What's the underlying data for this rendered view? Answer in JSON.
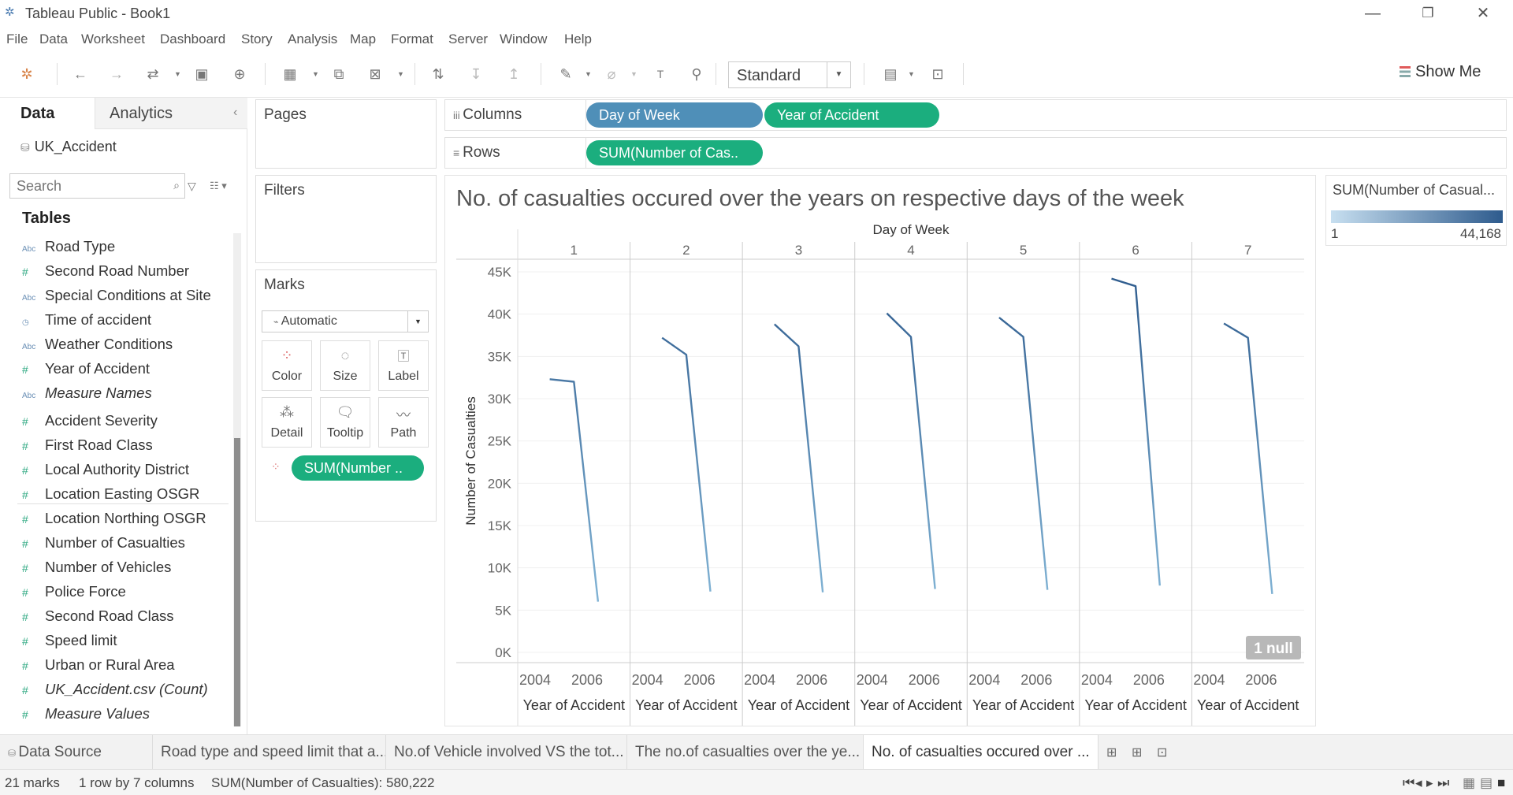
{
  "window": {
    "title": "Tableau Public - Book1",
    "minimize": "—",
    "restore": "❐",
    "close": "✕"
  },
  "menu": [
    "File",
    "Data",
    "Worksheet",
    "Dashboard",
    "Story",
    "Analysis",
    "Map",
    "Format",
    "Server",
    "Window",
    "Help"
  ],
  "toolbar": {
    "fit_value": "Standard",
    "show_me": "Show Me"
  },
  "data_pane": {
    "tab_data": "Data",
    "tab_analytics": "Analytics",
    "datasource": "UK_Accident",
    "search_placeholder": "Search",
    "tables_heading": "Tables",
    "dimensions": [
      {
        "type": "Abc",
        "name": "Road Type"
      },
      {
        "type": "#",
        "name": "Second Road Number"
      },
      {
        "type": "Abc",
        "name": "Special Conditions at Site"
      },
      {
        "type": "clock",
        "name": "Time of accident"
      },
      {
        "type": "Abc",
        "name": "Weather Conditions"
      },
      {
        "type": "#",
        "name": "Year of Accident"
      },
      {
        "type": "Abc",
        "name": "Measure Names",
        "italic": true
      }
    ],
    "measures": [
      {
        "type": "#",
        "name": "Accident Severity"
      },
      {
        "type": "#",
        "name": "First Road Class"
      },
      {
        "type": "#",
        "name": "Local Authority District"
      },
      {
        "type": "#",
        "name": "Location Easting OSGR"
      },
      {
        "type": "#",
        "name": "Location Northing OSGR"
      },
      {
        "type": "#",
        "name": "Number of Casualties"
      },
      {
        "type": "#",
        "name": "Number of Vehicles"
      },
      {
        "type": "#",
        "name": "Police Force"
      },
      {
        "type": "#",
        "name": "Second Road Class"
      },
      {
        "type": "#",
        "name": "Speed limit"
      },
      {
        "type": "#",
        "name": "Urban or Rural Area"
      },
      {
        "type": "#",
        "name": "UK_Accident.csv (Count)",
        "italic": true
      },
      {
        "type": "#",
        "name": "Measure Values",
        "italic": true
      }
    ]
  },
  "cards": {
    "pages": "Pages",
    "filters": "Filters",
    "marks": "Marks",
    "mark_type": "Automatic",
    "mark_buttons": [
      "Color",
      "Size",
      "Label",
      "Detail",
      "Tooltip",
      "Path"
    ],
    "mark_pill": "SUM(Number .."
  },
  "shelves": {
    "columns_label": "Columns",
    "rows_label": "Rows",
    "columns_pills": [
      "Day of Week",
      "Year of Accident"
    ],
    "rows_pills": [
      "SUM(Number of Cas.."
    ]
  },
  "legend": {
    "title": "SUM(Number of Casual...",
    "min": "1",
    "max": "44,168",
    "color_low": "#c7dff0",
    "color_high": "#2e5b8d"
  },
  "chart_data": {
    "type": "line",
    "title": "No. of casualties occured over the years on respective days of the week",
    "column_header": "Day of Week",
    "panels": [
      "1",
      "2",
      "3",
      "4",
      "5",
      "6",
      "7"
    ],
    "x_ticks": [
      "2004",
      "2006"
    ],
    "xlabel": "Year of Accident",
    "ylabel": "Number of Casualties",
    "y_ticks": [
      "0K",
      "5K",
      "10K",
      "15K",
      "20K",
      "25K",
      "30K",
      "35K",
      "40K",
      "45K"
    ],
    "ylim": [
      0,
      45000
    ],
    "x": [
      2005,
      2006,
      2007
    ],
    "series": [
      {
        "values": [
          32300,
          32000,
          6000
        ]
      },
      {
        "values": [
          37200,
          35200,
          7200
        ]
      },
      {
        "values": [
          38800,
          36200,
          7100
        ]
      },
      {
        "values": [
          40100,
          37300,
          7500
        ]
      },
      {
        "values": [
          39600,
          37300,
          7400
        ]
      },
      {
        "values": [
          44200,
          43300,
          7900
        ]
      },
      {
        "values": [
          38900,
          37200,
          6900
        ]
      }
    ],
    "null_badge": "1 null"
  },
  "sheet_tabs": {
    "data_source": "Data Source",
    "tabs": [
      "Road type and speed limit that a...",
      "No.of Vehicle involved VS the tot...",
      "The no.of casualties over the ye...",
      "No. of casualties occured over ..."
    ]
  },
  "status": {
    "marks": "21 marks",
    "dims": "1 row by 7 columns",
    "sum": "SUM(Number of Casualties): 580,222"
  }
}
